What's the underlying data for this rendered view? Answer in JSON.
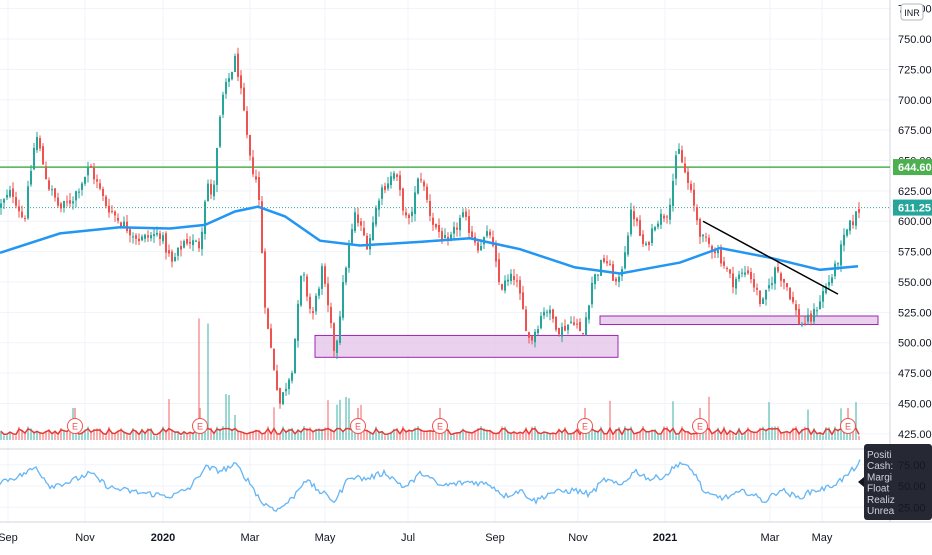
{
  "chart_data": {
    "type": "candlestick",
    "currency": "INR",
    "price_axis": {
      "ticks": [
        775,
        750,
        725,
        700,
        675,
        650,
        625,
        600,
        575,
        550,
        525,
        500,
        475,
        450,
        425
      ],
      "tick_labels": [
        "775.00",
        "750.00",
        "725.00",
        "700.00",
        "675.00",
        "650.00",
        "625.00",
        "600.00",
        "575.00",
        "550.00",
        "525.00",
        "500.00",
        "475.00",
        "450.00",
        "425.00"
      ],
      "ylim": [
        415,
        778
      ]
    },
    "time_axis": {
      "labels": [
        "Sep",
        "Nov",
        "2020",
        "Mar",
        "May",
        "Jul",
        "Sep",
        "Nov",
        "2021",
        "Mar",
        "May"
      ],
      "bold_labels": [
        "2020",
        "2021"
      ]
    },
    "price_path": [
      {
        "t": 0,
        "p": 612
      },
      {
        "t": 12,
        "p": 625
      },
      {
        "t": 24,
        "p": 600
      },
      {
        "t": 36,
        "p": 672
      },
      {
        "t": 48,
        "p": 630
      },
      {
        "t": 60,
        "p": 610
      },
      {
        "t": 72,
        "p": 618
      },
      {
        "t": 90,
        "p": 645
      },
      {
        "t": 105,
        "p": 615
      },
      {
        "t": 120,
        "p": 600
      },
      {
        "t": 140,
        "p": 585
      },
      {
        "t": 160,
        "p": 590
      },
      {
        "t": 172,
        "p": 565
      },
      {
        "t": 185,
        "p": 585
      },
      {
        "t": 200,
        "p": 580
      },
      {
        "t": 207,
        "p": 635
      },
      {
        "t": 212,
        "p": 615
      },
      {
        "t": 222,
        "p": 700
      },
      {
        "t": 236,
        "p": 735
      },
      {
        "t": 250,
        "p": 650
      },
      {
        "t": 258,
        "p": 630
      },
      {
        "t": 266,
        "p": 520
      },
      {
        "t": 280,
        "p": 450
      },
      {
        "t": 292,
        "p": 480
      },
      {
        "t": 302,
        "p": 560
      },
      {
        "t": 312,
        "p": 520
      },
      {
        "t": 322,
        "p": 560
      },
      {
        "t": 335,
        "p": 490
      },
      {
        "t": 345,
        "p": 560
      },
      {
        "t": 355,
        "p": 605
      },
      {
        "t": 368,
        "p": 580
      },
      {
        "t": 380,
        "p": 625
      },
      {
        "t": 395,
        "p": 640
      },
      {
        "t": 408,
        "p": 595
      },
      {
        "t": 420,
        "p": 640
      },
      {
        "t": 432,
        "p": 600
      },
      {
        "t": 448,
        "p": 580
      },
      {
        "t": 462,
        "p": 605
      },
      {
        "t": 478,
        "p": 580
      },
      {
        "t": 490,
        "p": 590
      },
      {
        "t": 500,
        "p": 545
      },
      {
        "t": 515,
        "p": 555
      },
      {
        "t": 530,
        "p": 500
      },
      {
        "t": 545,
        "p": 530
      },
      {
        "t": 560,
        "p": 510
      },
      {
        "t": 575,
        "p": 520
      },
      {
        "t": 582,
        "p": 502
      },
      {
        "t": 592,
        "p": 550
      },
      {
        "t": 605,
        "p": 570
      },
      {
        "t": 618,
        "p": 545
      },
      {
        "t": 632,
        "p": 610
      },
      {
        "t": 645,
        "p": 575
      },
      {
        "t": 655,
        "p": 600
      },
      {
        "t": 668,
        "p": 608
      },
      {
        "t": 678,
        "p": 660
      },
      {
        "t": 690,
        "p": 625
      },
      {
        "t": 702,
        "p": 585
      },
      {
        "t": 718,
        "p": 575
      },
      {
        "t": 732,
        "p": 550
      },
      {
        "t": 748,
        "p": 560
      },
      {
        "t": 762,
        "p": 530
      },
      {
        "t": 776,
        "p": 562
      },
      {
        "t": 788,
        "p": 545
      },
      {
        "t": 800,
        "p": 515
      },
      {
        "t": 812,
        "p": 520
      },
      {
        "t": 822,
        "p": 540
      },
      {
        "t": 834,
        "p": 558
      },
      {
        "t": 846,
        "p": 590
      },
      {
        "t": 860,
        "p": 611
      }
    ],
    "moving_average_path": [
      {
        "t": 0,
        "p": 574
      },
      {
        "t": 60,
        "p": 590
      },
      {
        "t": 120,
        "p": 595
      },
      {
        "t": 170,
        "p": 594
      },
      {
        "t": 205,
        "p": 597
      },
      {
        "t": 235,
        "p": 608
      },
      {
        "t": 258,
        "p": 612
      },
      {
        "t": 285,
        "p": 604
      },
      {
        "t": 320,
        "p": 584
      },
      {
        "t": 360,
        "p": 580
      },
      {
        "t": 420,
        "p": 583
      },
      {
        "t": 470,
        "p": 586
      },
      {
        "t": 520,
        "p": 577
      },
      {
        "t": 575,
        "p": 562
      },
      {
        "t": 620,
        "p": 557
      },
      {
        "t": 680,
        "p": 566
      },
      {
        "t": 720,
        "p": 578
      },
      {
        "t": 770,
        "p": 570
      },
      {
        "t": 820,
        "p": 560
      },
      {
        "t": 858,
        "p": 563
      }
    ],
    "horizontal_levels": [
      {
        "label": "644.60",
        "value": 644.6,
        "color": "#4caf50"
      },
      {
        "label": "611.25",
        "value": 611.25,
        "color": "#26a69a",
        "dotted": true
      }
    ],
    "support_zones": [
      {
        "t_start": 315,
        "t_end": 618,
        "low": 488,
        "high": 506
      },
      {
        "t_start": 600,
        "t_end": 878,
        "low": 515,
        "high": 522
      }
    ],
    "trendline": {
      "t1": 703,
      "p1": 600,
      "t2": 838,
      "p2": 540
    },
    "earnings_markers": [
      75,
      200,
      358,
      440,
      585,
      700,
      848
    ],
    "lower_panel": {
      "type": "oscillator",
      "ticks": [
        75.0,
        50.0,
        25.0
      ],
      "tick_labels": [
        "75.00",
        "50.00",
        "25.00"
      ],
      "ylim": [
        10,
        90
      ],
      "path": [
        {
          "t": 0,
          "p": 55
        },
        {
          "t": 20,
          "p": 62
        },
        {
          "t": 36,
          "p": 72
        },
        {
          "t": 50,
          "p": 50
        },
        {
          "t": 70,
          "p": 55
        },
        {
          "t": 90,
          "p": 65
        },
        {
          "t": 110,
          "p": 48
        },
        {
          "t": 140,
          "p": 42
        },
        {
          "t": 172,
          "p": 38
        },
        {
          "t": 190,
          "p": 48
        },
        {
          "t": 205,
          "p": 72
        },
        {
          "t": 220,
          "p": 68
        },
        {
          "t": 236,
          "p": 75
        },
        {
          "t": 252,
          "p": 50
        },
        {
          "t": 262,
          "p": 30
        },
        {
          "t": 278,
          "p": 22
        },
        {
          "t": 292,
          "p": 35
        },
        {
          "t": 305,
          "p": 58
        },
        {
          "t": 318,
          "p": 45
        },
        {
          "t": 335,
          "p": 32
        },
        {
          "t": 350,
          "p": 62
        },
        {
          "t": 365,
          "p": 58
        },
        {
          "t": 385,
          "p": 66
        },
        {
          "t": 405,
          "p": 48
        },
        {
          "t": 422,
          "p": 66
        },
        {
          "t": 440,
          "p": 50
        },
        {
          "t": 470,
          "p": 55
        },
        {
          "t": 490,
          "p": 52
        },
        {
          "t": 505,
          "p": 38
        },
        {
          "t": 520,
          "p": 45
        },
        {
          "t": 535,
          "p": 32
        },
        {
          "t": 550,
          "p": 42
        },
        {
          "t": 575,
          "p": 45
        },
        {
          "t": 590,
          "p": 40
        },
        {
          "t": 605,
          "p": 58
        },
        {
          "t": 620,
          "p": 50
        },
        {
          "t": 635,
          "p": 68
        },
        {
          "t": 650,
          "p": 58
        },
        {
          "t": 665,
          "p": 62
        },
        {
          "t": 680,
          "p": 78
        },
        {
          "t": 695,
          "p": 65
        },
        {
          "t": 705,
          "p": 40
        },
        {
          "t": 725,
          "p": 36
        },
        {
          "t": 745,
          "p": 44
        },
        {
          "t": 765,
          "p": 32
        },
        {
          "t": 780,
          "p": 46
        },
        {
          "t": 798,
          "p": 36
        },
        {
          "t": 812,
          "p": 44
        },
        {
          "t": 828,
          "p": 48
        },
        {
          "t": 845,
          "p": 60
        },
        {
          "t": 860,
          "p": 78
        }
      ]
    }
  },
  "legend_tooltip": {
    "lines": [
      "Positi",
      "Cash:",
      "Margi",
      "Float",
      "Realiz",
      "Unrea"
    ]
  },
  "icons": {
    "scale_toggle": "settings-icon"
  },
  "colors": {
    "up": "#26a69a",
    "down": "#ef5350",
    "ma": "#2196f3",
    "oscillator": "#64b5f6",
    "zone_fill": "#e1bee7",
    "zone_stroke": "#9c27b0",
    "resistance": "#4caf50"
  }
}
